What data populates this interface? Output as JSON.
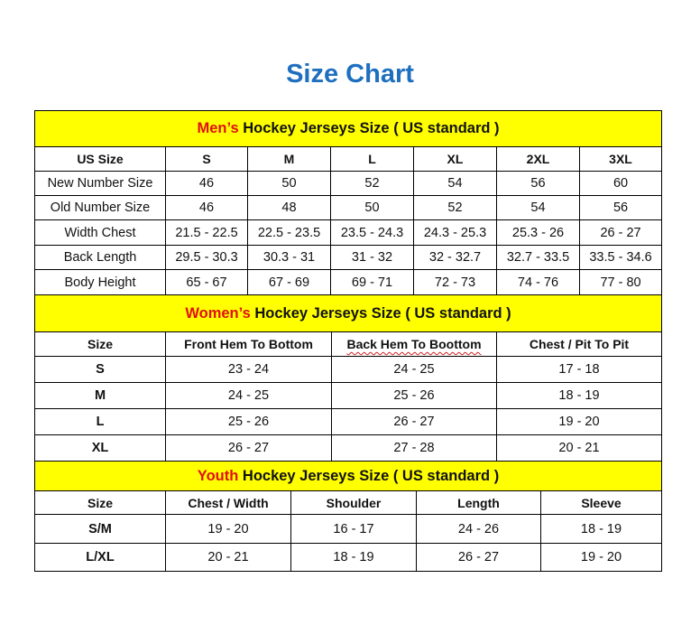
{
  "title": "Size Chart",
  "colors": {
    "title": "#1f6fbf",
    "header_bg": "#ffff00",
    "accent": "#e01010"
  },
  "sections": [
    {
      "accent": "Men’s",
      "heading": " Hockey Jerseys Size ( US standard )",
      "columns": [
        "US Size",
        "S",
        "M",
        "L",
        "XL",
        "2XL",
        "3XL"
      ],
      "rows": [
        [
          "New Number Size",
          "46",
          "50",
          "52",
          "54",
          "56",
          "60"
        ],
        [
          "Old Number Size",
          "46",
          "48",
          "50",
          "52",
          "54",
          "56"
        ],
        [
          "Width Chest",
          "21.5 - 22.5",
          "22.5 - 23.5",
          "23.5 - 24.3",
          "24.3 - 25.3",
          "25.3 - 26",
          "26 - 27"
        ],
        [
          "Back Length",
          "29.5 - 30.3",
          "30.3 - 31",
          "31 - 32",
          "32 - 32.7",
          "32.7 - 33.5",
          "33.5 - 34.6"
        ],
        [
          "Body Height",
          "65 - 67",
          "67 - 69",
          "69 - 71",
          "72 - 73",
          "74 - 76",
          "77 - 80"
        ]
      ]
    },
    {
      "accent": "Women’s",
      "heading": " Hockey Jerseys Size ( US standard )",
      "columns": [
        "Size",
        "Front Hem To Bottom",
        "Back Hem To Boottom",
        "Chest / Pit To Pit"
      ],
      "rows": [
        [
          "S",
          "23 - 24",
          "24 - 25",
          "17 - 18"
        ],
        [
          "M",
          "24 - 25",
          "25 - 26",
          "18 - 19"
        ],
        [
          "L",
          "25 - 26",
          "26 - 27",
          "19 - 20"
        ],
        [
          "XL",
          "26 - 27",
          "27 - 28",
          "20 - 21"
        ]
      ]
    },
    {
      "accent": "Youth",
      "heading": " Hockey Jerseys Size ( US standard )",
      "columns": [
        "Size",
        "Chest / Width",
        "Shoulder",
        "Length",
        "Sleeve"
      ],
      "rows": [
        [
          "S/M",
          "19 - 20",
          "16 - 17",
          "24 - 26",
          "18 - 19"
        ],
        [
          "L/XL",
          "20 - 21",
          "18 - 19",
          "26 - 27",
          "19 - 20"
        ]
      ]
    }
  ]
}
